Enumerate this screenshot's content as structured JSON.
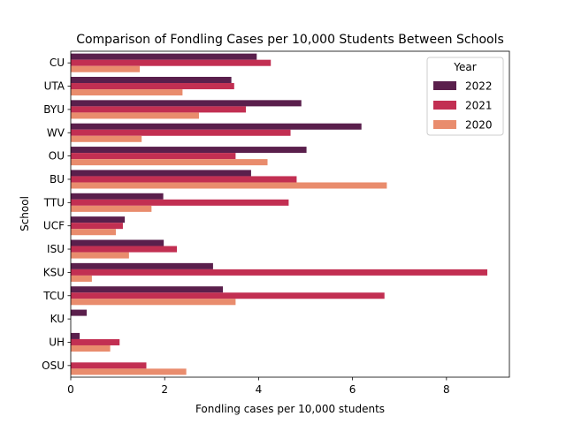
{
  "chart_data": {
    "type": "bar",
    "orientation": "horizontal",
    "title": "Comparison of Fondling Cases per 10,000 Students Between Schools",
    "xlabel": "Fondling cases per 10,000 students",
    "ylabel": "School",
    "xlim": [
      0,
      9.34
    ],
    "xticks": [
      0,
      2,
      4,
      6,
      8
    ],
    "grid": false,
    "legend": {
      "title": "Year",
      "placement": "top-right"
    },
    "categories": [
      "CU",
      "UTA",
      "BYU",
      "WV",
      "OU",
      "BU",
      "TTU",
      "UCF",
      "ISU",
      "KSU",
      "TCU",
      "KU",
      "UH",
      "OSU"
    ],
    "series": [
      {
        "name": "2022",
        "color": "#5a1f4c",
        "values": [
          3.96,
          3.42,
          4.91,
          6.19,
          5.02,
          3.84,
          1.97,
          1.15,
          1.98,
          3.03,
          3.24,
          0.34,
          0.19,
          0
        ]
      },
      {
        "name": "2021",
        "color": "#c22f52",
        "values": [
          4.26,
          3.48,
          3.73,
          4.68,
          3.51,
          4.81,
          4.64,
          1.11,
          2.26,
          8.87,
          6.68,
          0,
          1.04,
          1.61
        ]
      },
      {
        "name": "2020",
        "color": "#e98c6d",
        "values": [
          1.47,
          2.38,
          2.73,
          1.51,
          4.19,
          6.73,
          1.72,
          0.96,
          1.24,
          0.45,
          3.51,
          0,
          0.84,
          2.46
        ]
      }
    ]
  }
}
